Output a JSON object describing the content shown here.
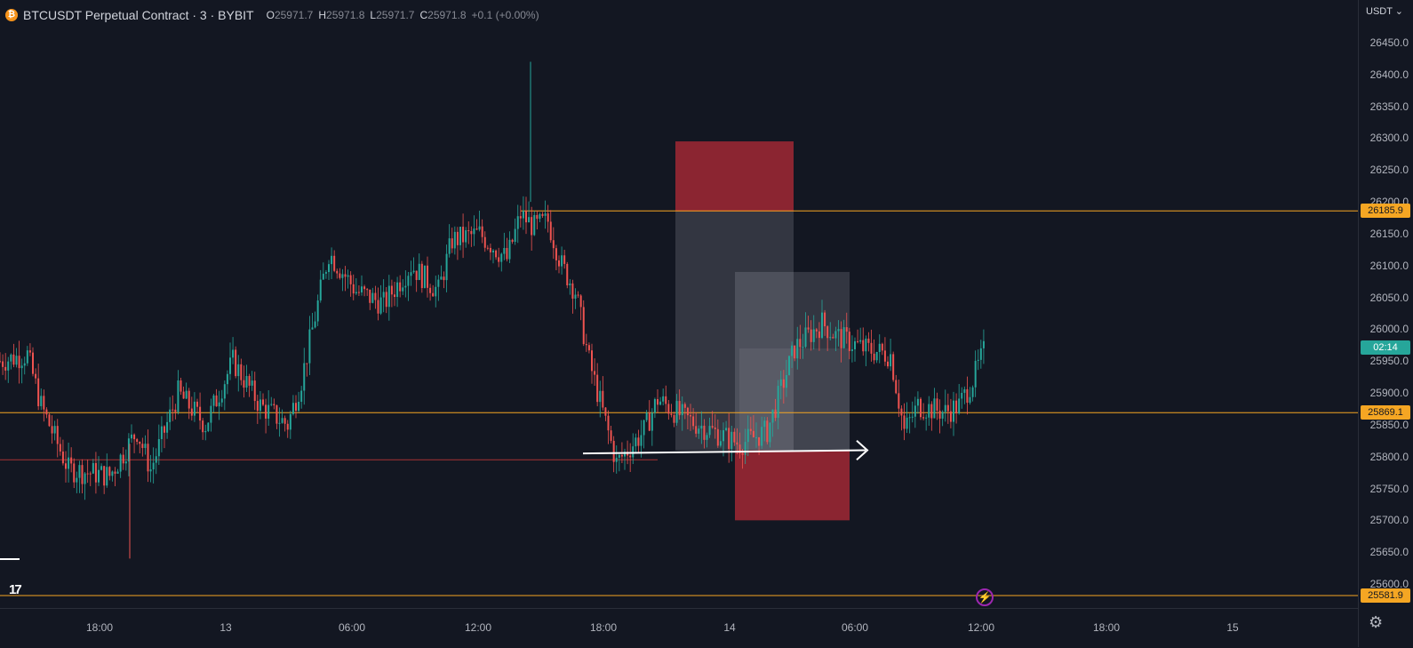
{
  "legend": {
    "coin_glyph": "₿",
    "symbol": "BTCUSDT Perpetual Contract · 3 · BYBIT",
    "o_key": "O",
    "o_val": "25971.7",
    "h_key": "H",
    "h_val": "25971.8",
    "l_key": "L",
    "l_val": "25971.7",
    "c_key": "C",
    "c_val": "25971.8",
    "change": "+0.1 (+0.00%)"
  },
  "price_scale": {
    "currency": "USDT ⌄",
    "ticks": [
      "26450.0",
      "26400.0",
      "26350.0",
      "26300.0",
      "26250.0",
      "26200.0",
      "26150.0",
      "26100.0",
      "26050.0",
      "26000.0",
      "25950.0",
      "25900.0",
      "25850.0",
      "25800.0",
      "25750.0",
      "25700.0",
      "25650.0",
      "25600.0"
    ],
    "labels": {
      "top_line": "26185.9",
      "mid_line": "25869.1",
      "countdown": "02:14",
      "bottom_line": "25581.9"
    }
  },
  "time_scale": {
    "labels": [
      "18:00",
      "13",
      "06:00",
      "12:00",
      "18:00",
      "14",
      "06:00",
      "12:00",
      "18:00",
      "15"
    ]
  },
  "icons": {
    "logo": "TradingView-logo",
    "bolt": "⚡",
    "settings": "⚙"
  },
  "colors": {
    "background": "#131722",
    "level_line": "#f5a623",
    "up": "#26a69a",
    "down": "#ef5350",
    "zone_red": "#8b2531",
    "countdown_bg": "#26a69a"
  },
  "chart_data": {
    "type": "candlestick",
    "symbol": "BTCUSDT Perpetual Contract",
    "interval": "3",
    "exchange": "BYBIT",
    "horizontal_levels": [
      26185.9,
      25869.1,
      25581.9
    ],
    "support_line": 25795,
    "zones": [
      {
        "type": "red",
        "y_top": 26295,
        "y_bottom": 26185
      },
      {
        "type": "gray",
        "y_top": 26185,
        "y_bottom": 25810
      },
      {
        "type": "gray",
        "y_top": 26090,
        "y_bottom": 25810
      },
      {
        "type": "red",
        "y_top": 25810,
        "y_bottom": 25700
      }
    ],
    "price_path": [
      [
        0,
        25950
      ],
      [
        0.02,
        25960
      ],
      [
        0.03,
        25880
      ],
      [
        0.05,
        25780
      ],
      [
        0.08,
        25770
      ],
      [
        0.1,
        25840
      ],
      [
        0.11,
        25780
      ],
      [
        0.13,
        25900
      ],
      [
        0.15,
        25850
      ],
      [
        0.17,
        25950
      ],
      [
        0.19,
        25880
      ],
      [
        0.21,
        25850
      ],
      [
        0.22,
        25920
      ],
      [
        0.24,
        26120
      ],
      [
        0.26,
        26060
      ],
      [
        0.28,
        26040
      ],
      [
        0.3,
        26100
      ],
      [
        0.32,
        26060
      ],
      [
        0.33,
        26140
      ],
      [
        0.35,
        26150
      ],
      [
        0.37,
        26110
      ],
      [
        0.38,
        26180
      ],
      [
        0.39,
        26160
      ],
      [
        0.4,
        26170
      ],
      [
        0.41,
        26100
      ],
      [
        0.42,
        26060
      ],
      [
        0.43,
        25950
      ],
      [
        0.44,
        25870
      ],
      [
        0.45,
        25790
      ],
      [
        0.47,
        25840
      ],
      [
        0.48,
        25890
      ],
      [
        0.5,
        25860
      ],
      [
        0.52,
        25840
      ],
      [
        0.54,
        25820
      ],
      [
        0.56,
        25840
      ],
      [
        0.58,
        25970
      ],
      [
        0.6,
        26010
      ],
      [
        0.61,
        25990
      ],
      [
        0.63,
        25970
      ],
      [
        0.65,
        25960
      ],
      [
        0.66,
        25840
      ],
      [
        0.67,
        25880
      ],
      [
        0.69,
        25870
      ],
      [
        0.7,
        25880
      ],
      [
        0.71,
        25920
      ],
      [
        0.72,
        25975
      ]
    ],
    "ylim": [
      25580,
      26480
    ]
  }
}
